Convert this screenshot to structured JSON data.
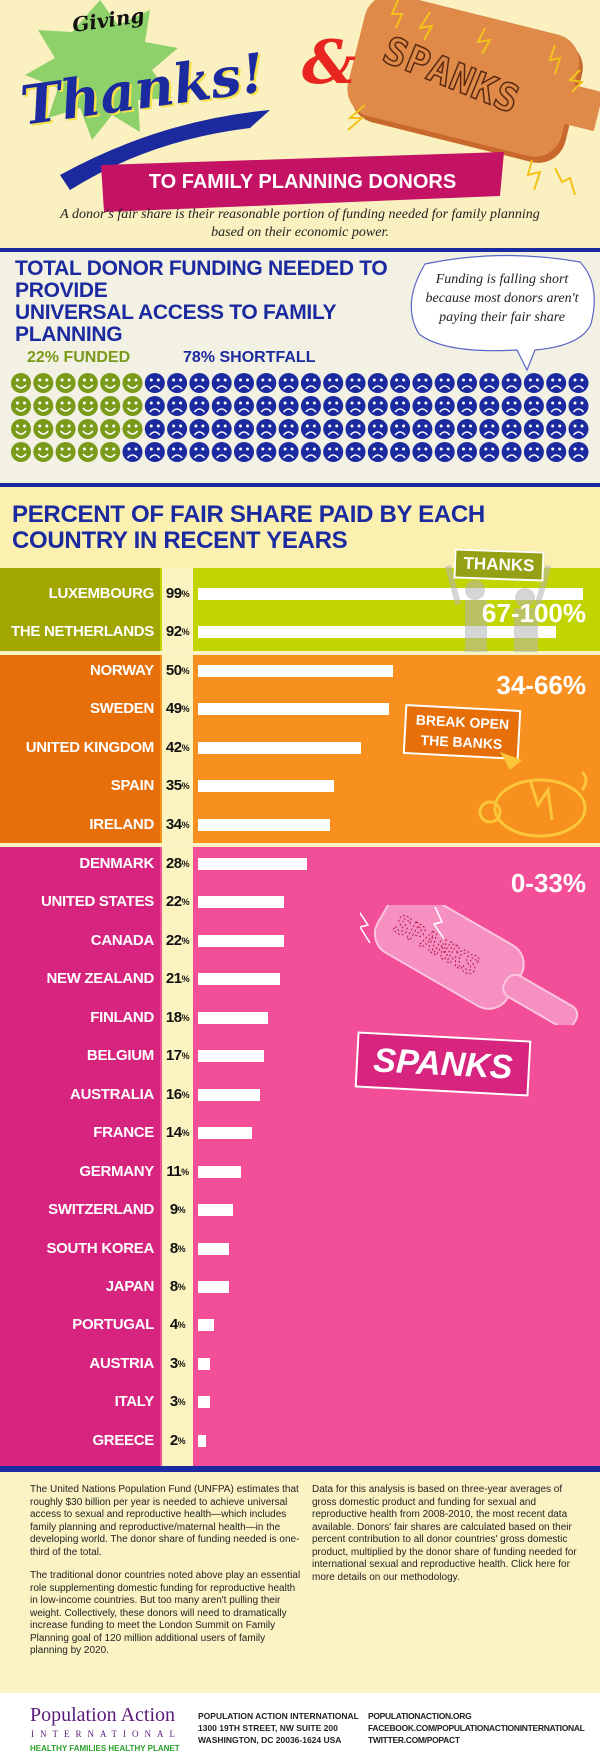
{
  "header": {
    "giving": "Giving",
    "thanks": "Thanks!",
    "ampersand": "&",
    "paddle_text": "SPANKS",
    "banner": "TO FAMILY PLANNING DONORS",
    "subtitle_line1": "A donor's fair share is their reasonable portion of funding needed for family planning",
    "subtitle_line2": "based on their economic power."
  },
  "funding": {
    "title_line1": "TOTAL DONOR FUNDING NEEDED TO PROVIDE",
    "title_line2": "UNIVERSAL ACCESS TO FAMILY PLANNING",
    "bubble_line1": "Funding is falling short",
    "bubble_line2": "because most donors aren't",
    "bubble_line3": "paying their fair share",
    "funded_label": "22% FUNDED",
    "shortfall_label": "78% SHORTFALL",
    "funded_percent": 22,
    "shortfall_percent": 78,
    "funded_color": "#7a9a1a",
    "shortfall_color": "#1c2aa0"
  },
  "chart_data": {
    "type": "bar",
    "orientation": "horizontal",
    "title": "PERCENT OF FAIR SHARE PAID BY EACH COUNTRY IN RECENT YEARS",
    "categories": [
      "LUXEMBOURG",
      "THE NETHERLANDS",
      "NORWAY",
      "SWEDEN",
      "UNITED KINGDOM",
      "SPAIN",
      "IRELAND",
      "DENMARK",
      "UNITED STATES",
      "CANADA",
      "NEW ZEALAND",
      "FINLAND",
      "BELGIUM",
      "AUSTRALIA",
      "FRANCE",
      "GERMANY",
      "SWITZERLAND",
      "SOUTH KOREA",
      "JAPAN",
      "PORTUGAL",
      "AUSTRIA",
      "ITALY",
      "GREECE"
    ],
    "values": [
      99,
      92,
      50,
      49,
      42,
      35,
      34,
      28,
      22,
      22,
      21,
      18,
      17,
      16,
      14,
      11,
      9,
      8,
      8,
      4,
      3,
      3,
      2
    ],
    "unit": "%",
    "xlim": [
      0,
      100
    ],
    "tiers": [
      {
        "range": "67-100%",
        "tag": "THANKS",
        "count": 2,
        "color": "#c3d500",
        "label_color": "#a2a600"
      },
      {
        "range": "34-66%",
        "tag_line1": "BREAK OPEN",
        "tag_line2": "THE BANKS",
        "count": 5,
        "color": "#f7901e",
        "label_color": "#e66f0a"
      },
      {
        "range": "0-33%",
        "tag": "SPANKS",
        "count": 16,
        "color": "#f24f98",
        "label_color": "#d6247f"
      }
    ]
  },
  "notes": {
    "left_p1": "The United Nations Population Fund (UNFPA) estimates that roughly $30 billion per year is needed to achieve universal access to sexual and reproductive health—which includes family planning and reproductive/maternal health—in the developing world.  The donor share of funding needed is one-third of the total.",
    "left_p2": "The traditional donor countries noted above play an essential role supplementing domestic funding for reproductive health in low-income countries.  But too many aren't pulling their weight. Collectively, these donors will need to dramatically increase funding to meet the London Summit on Family Planning goal of 120 million additional users of family planning by 2020.",
    "right_p1": "Data for this analysis is based on three-year averages of gross domestic product and funding for sexual and reproductive health from 2008-2010, the most recent data available. Donors' fair shares are calculated based on their percent contribution to all donor countries' gross domestic product, multiplied by the donor share of funding needed for international sexual and reproductive health. Click here for more details on our methodology."
  },
  "footer": {
    "logo_name": "Population Action",
    "logo_sub": "INTERNATIONAL",
    "logo_tagline": "HEALTHY FAMILIES HEALTHY PLANET",
    "addr1": "POPULATION ACTION INTERNATIONAL",
    "addr2": "1300 19TH STREET, NW SUITE 200",
    "addr3": "WASHINGTON, DC 20036-1624 USA",
    "web1": "POPULATIONACTION.ORG",
    "web2": "FACEBOOK.COM/POPULATIONACTIONINTERNATIONAL",
    "web3": "TWITTER.COM/POPACT"
  }
}
